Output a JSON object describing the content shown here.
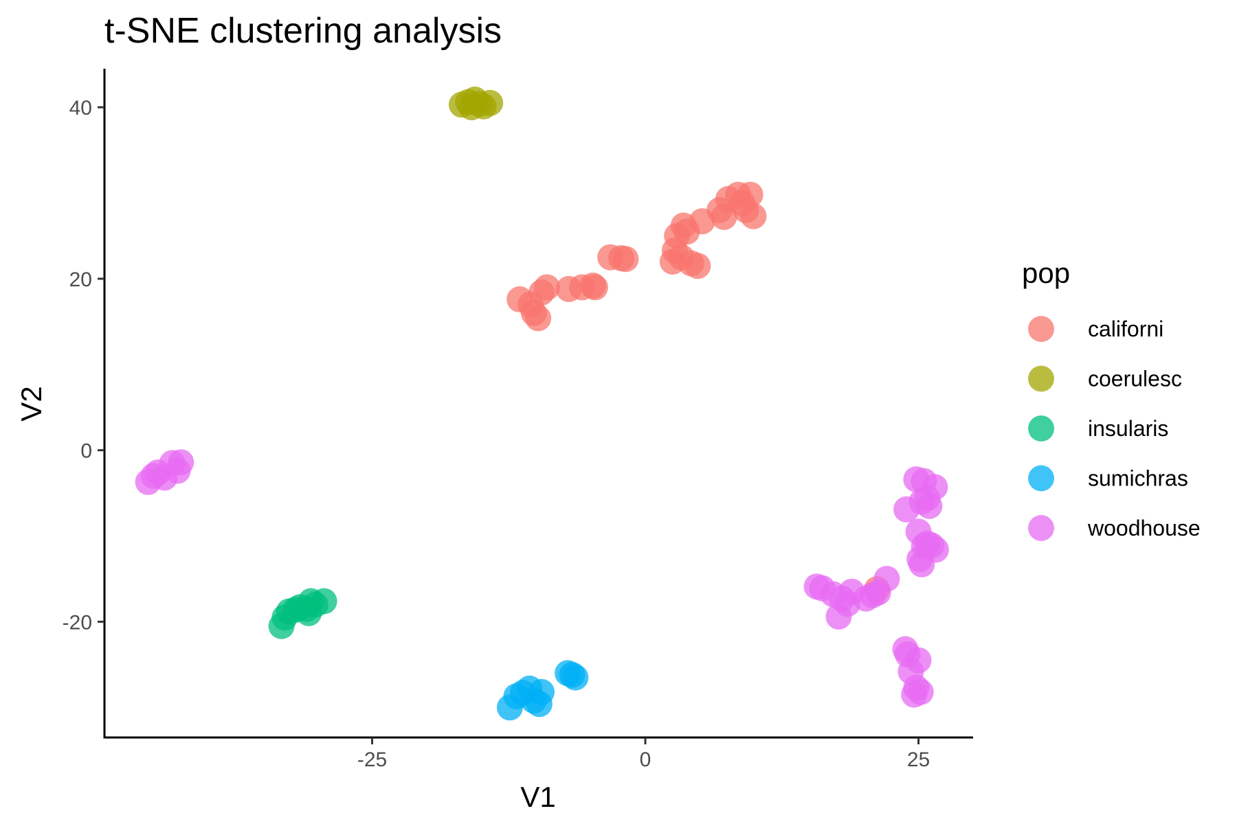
{
  "chart_data": {
    "type": "scatter",
    "title": "t-SNE clustering analysis",
    "xlabel": "V1",
    "ylabel": "V2",
    "xlim": [
      -49.5,
      30
    ],
    "ylim": [
      -33.5,
      44.5
    ],
    "x_ticks": [
      -25,
      0,
      25
    ],
    "x_tick_labels": [
      "-25",
      "0",
      "25"
    ],
    "y_ticks": [
      -20,
      0,
      20,
      40
    ],
    "y_tick_labels": [
      "-20",
      "0",
      "20",
      "40"
    ],
    "grid": false,
    "legend": {
      "title": "pop",
      "position": "right"
    },
    "series": [
      {
        "name": "californi",
        "color": "#F8766D",
        "points": [
          [
            -11.5,
            17.6
          ],
          [
            -10.5,
            17.0
          ],
          [
            -10.2,
            16.0
          ],
          [
            -9.8,
            15.4
          ],
          [
            -9.5,
            18.4
          ],
          [
            -9.0,
            19.0
          ],
          [
            -7.0,
            18.8
          ],
          [
            -5.8,
            19.0
          ],
          [
            -4.8,
            19.2
          ],
          [
            -4.6,
            19.0
          ],
          [
            -3.2,
            22.5
          ],
          [
            -2.2,
            22.4
          ],
          [
            -1.8,
            22.3
          ],
          [
            2.5,
            22.0
          ],
          [
            2.7,
            23.3
          ],
          [
            2.9,
            25.0
          ],
          [
            3.3,
            22.5
          ],
          [
            3.5,
            26.2
          ],
          [
            3.8,
            25.5
          ],
          [
            4.2,
            21.8
          ],
          [
            4.8,
            21.5
          ],
          [
            5.2,
            26.7
          ],
          [
            6.8,
            28.0
          ],
          [
            7.2,
            27.2
          ],
          [
            7.6,
            29.3
          ],
          [
            8.5,
            29.8
          ],
          [
            8.9,
            28.8
          ],
          [
            9.2,
            28.0
          ],
          [
            9.6,
            29.8
          ],
          [
            9.9,
            27.3
          ],
          [
            21.2,
            -16.2
          ]
        ]
      },
      {
        "name": "coerulesc",
        "color": "#A3A500",
        "points": [
          [
            -16.8,
            40.3
          ],
          [
            -16.2,
            40.6
          ],
          [
            -15.9,
            40.0
          ],
          [
            -15.6,
            40.9
          ],
          [
            -15.2,
            40.4
          ],
          [
            -14.8,
            40.1
          ],
          [
            -14.2,
            40.5
          ]
        ]
      },
      {
        "name": "insularis",
        "color": "#00BF7D",
        "points": [
          [
            -33.3,
            -20.5
          ],
          [
            -33.0,
            -19.5
          ],
          [
            -32.6,
            -18.8
          ],
          [
            -32.0,
            -18.6
          ],
          [
            -31.6,
            -18.3
          ],
          [
            -31.0,
            -18.5
          ],
          [
            -30.8,
            -19.0
          ],
          [
            -30.6,
            -17.6
          ],
          [
            -30.2,
            -18.0
          ],
          [
            -29.4,
            -17.6
          ]
        ]
      },
      {
        "name": "sumichras",
        "color": "#00B0F6",
        "points": [
          [
            -12.4,
            -30.0
          ],
          [
            -11.8,
            -28.7
          ],
          [
            -11.2,
            -28.3
          ],
          [
            -10.6,
            -27.8
          ],
          [
            -10.2,
            -29.2
          ],
          [
            -9.7,
            -29.6
          ],
          [
            -9.5,
            -28.2
          ],
          [
            -7.1,
            -26.0
          ],
          [
            -6.7,
            -26.2
          ],
          [
            -6.4,
            -26.5
          ]
        ]
      },
      {
        "name": "woodhouse",
        "color": "#E76BF3",
        "points": [
          [
            -45.5,
            -3.7
          ],
          [
            -45.0,
            -3.0
          ],
          [
            -44.6,
            -2.6
          ],
          [
            -44.0,
            -3.2
          ],
          [
            -43.3,
            -1.5
          ],
          [
            -42.8,
            -2.4
          ],
          [
            -42.5,
            -1.4
          ],
          [
            15.7,
            -15.9
          ],
          [
            16.2,
            -16.1
          ],
          [
            17.2,
            -16.8
          ],
          [
            17.7,
            -19.4
          ],
          [
            18.0,
            -17.3
          ],
          [
            18.5,
            -17.9
          ],
          [
            18.9,
            -16.5
          ],
          [
            20.2,
            -17.3
          ],
          [
            20.8,
            -16.9
          ],
          [
            21.3,
            -16.6
          ],
          [
            22.1,
            -15.0
          ],
          [
            23.8,
            -23.2
          ],
          [
            24.0,
            -23.8
          ],
          [
            24.3,
            -25.8
          ],
          [
            24.6,
            -28.5
          ],
          [
            24.8,
            -27.7
          ],
          [
            25.0,
            -24.5
          ],
          [
            25.2,
            -28.2
          ],
          [
            23.9,
            -6.9
          ],
          [
            24.8,
            -3.4
          ],
          [
            25.0,
            -9.5
          ],
          [
            25.3,
            -6.0
          ],
          [
            25.5,
            -3.6
          ],
          [
            25.8,
            -5.6
          ],
          [
            26.0,
            -6.5
          ],
          [
            26.5,
            -4.3
          ],
          [
            25.1,
            -12.7
          ],
          [
            25.3,
            -13.3
          ],
          [
            25.5,
            -11.2
          ],
          [
            25.8,
            -10.9
          ],
          [
            26.2,
            -11.1
          ],
          [
            26.6,
            -11.6
          ]
        ]
      }
    ]
  }
}
